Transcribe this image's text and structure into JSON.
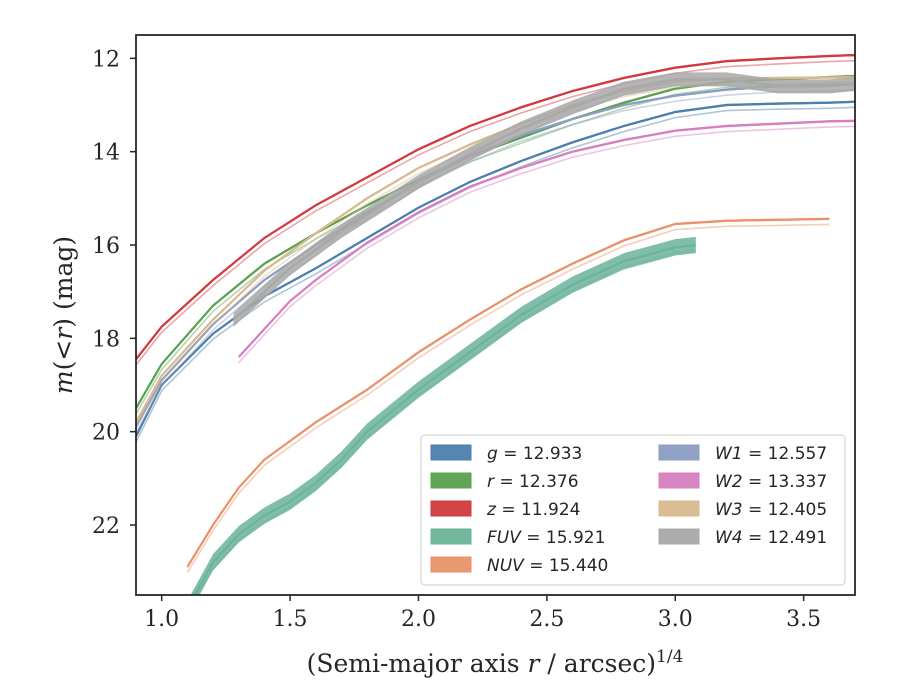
{
  "chart_data": {
    "type": "line",
    "title": "",
    "xlabel": "(Semi-major axis r / arcsec)^{1/4}",
    "ylabel": "m(<r) (mag)",
    "xlim": [
      0.9,
      3.7
    ],
    "ylim": [
      23.5,
      11.5
    ],
    "y_inverted": true,
    "grid": false,
    "legend_position": "lower-right",
    "x_ticks": [
      "1.0",
      "1.5",
      "2.0",
      "2.5",
      "3.0",
      "3.5"
    ],
    "y_ticks": [
      "12",
      "14",
      "16",
      "18",
      "20",
      "22"
    ],
    "series": [
      {
        "name": "g = 12.933",
        "band": "g",
        "color": "#4c7fad",
        "band_width": 0.05,
        "x": [
          0.9,
          1.0,
          1.2,
          1.4,
          1.6,
          1.8,
          2.0,
          2.2,
          2.4,
          2.6,
          2.8,
          3.0,
          3.2,
          3.4,
          3.6,
          3.7
        ],
        "y": [
          20.1,
          19.0,
          17.9,
          17.1,
          16.5,
          15.85,
          15.2,
          14.65,
          14.2,
          13.8,
          13.45,
          13.15,
          13.0,
          12.97,
          12.95,
          12.93
        ]
      },
      {
        "name": "r = 12.376",
        "band": "r",
        "color": "#59a14f",
        "band_width": 0.05,
        "x": [
          0.9,
          1.0,
          1.2,
          1.4,
          1.6,
          1.8,
          2.0,
          2.2,
          2.4,
          2.6,
          2.8,
          3.0,
          3.2,
          3.4,
          3.6,
          3.7
        ],
        "y": [
          19.5,
          18.55,
          17.3,
          16.4,
          15.75,
          15.15,
          14.6,
          14.1,
          13.7,
          13.3,
          12.95,
          12.65,
          12.5,
          12.45,
          12.4,
          12.38
        ]
      },
      {
        "name": "z = 11.924",
        "band": "z",
        "color": "#d03a3e",
        "band_width": 0.05,
        "x": [
          0.9,
          1.0,
          1.2,
          1.4,
          1.6,
          1.8,
          2.0,
          2.2,
          2.4,
          2.6,
          2.8,
          3.0,
          3.2,
          3.4,
          3.6,
          3.7
        ],
        "y": [
          18.45,
          17.75,
          16.75,
          15.85,
          15.15,
          14.55,
          13.95,
          13.45,
          13.05,
          12.7,
          12.42,
          12.2,
          12.06,
          12.0,
          11.95,
          11.93
        ]
      },
      {
        "name": "FUV = 15.921",
        "band": "FUV",
        "color": "#6bb39a",
        "band_width": 0.35,
        "x": [
          1.1,
          1.2,
          1.3,
          1.4,
          1.5,
          1.6,
          1.7,
          1.8,
          1.9,
          2.0,
          2.2,
          2.4,
          2.6,
          2.8,
          3.0,
          3.08
        ],
        "y": [
          23.8,
          22.8,
          22.2,
          21.8,
          21.5,
          21.1,
          20.6,
          20.0,
          19.55,
          19.1,
          18.3,
          17.5,
          16.85,
          16.35,
          16.05,
          16.0
        ]
      },
      {
        "name": "NUV = 15.440",
        "band": "NUV",
        "color": "#e8926a",
        "band_width": 0.05,
        "x": [
          1.1,
          1.2,
          1.3,
          1.4,
          1.5,
          1.6,
          1.8,
          2.0,
          2.2,
          2.4,
          2.6,
          2.8,
          3.0,
          3.2,
          3.4,
          3.6
        ],
        "y": [
          22.9,
          22.0,
          21.2,
          20.6,
          20.2,
          19.8,
          19.1,
          18.3,
          17.6,
          16.95,
          16.4,
          15.9,
          15.55,
          15.48,
          15.46,
          15.44
        ]
      },
      {
        "name": "W1 = 12.557",
        "band": "W1",
        "color": "#8b9dc3",
        "band_width": 0.05,
        "x": [
          0.9,
          1.0,
          1.2,
          1.4,
          1.6,
          1.8,
          2.0,
          2.2,
          2.4,
          2.6,
          2.8,
          3.0,
          3.2,
          3.4,
          3.6,
          3.7
        ],
        "y": [
          19.9,
          18.9,
          17.7,
          16.75,
          16.0,
          15.3,
          14.65,
          14.1,
          13.65,
          13.3,
          13.0,
          12.8,
          12.67,
          12.6,
          12.57,
          12.56
        ]
      },
      {
        "name": "W2 = 13.337",
        "band": "W2",
        "color": "#d67fbf",
        "band_width": 0.05,
        "x": [
          1.3,
          1.4,
          1.5,
          1.6,
          1.8,
          2.0,
          2.2,
          2.4,
          2.6,
          2.8,
          3.0,
          3.2,
          3.4,
          3.6,
          3.7
        ],
        "y": [
          18.4,
          17.8,
          17.2,
          16.75,
          15.95,
          15.3,
          14.75,
          14.35,
          14.0,
          13.75,
          13.55,
          13.45,
          13.4,
          13.35,
          13.34
        ]
      },
      {
        "name": "W3 = 12.405",
        "band": "W3",
        "color": "#d9b98e",
        "band_width": 0.05,
        "x": [
          0.9,
          1.0,
          1.2,
          1.4,
          1.6,
          1.8,
          2.0,
          2.2,
          2.4,
          2.6,
          2.8,
          3.0,
          3.2,
          3.4,
          3.6,
          3.7
        ],
        "y": [
          19.8,
          18.8,
          17.6,
          16.55,
          15.75,
          15.0,
          14.35,
          13.85,
          13.4,
          13.0,
          12.7,
          12.5,
          12.43,
          12.42,
          12.41,
          12.405
        ]
      },
      {
        "name": "W4 = 12.491",
        "band": "W4",
        "color": "#a8a8a8",
        "band_width": 0.3,
        "x": [
          1.28,
          1.4,
          1.5,
          1.6,
          1.7,
          1.8,
          2.0,
          2.2,
          2.4,
          2.6,
          2.8,
          3.0,
          3.2,
          3.4,
          3.6,
          3.7
        ],
        "y": [
          17.6,
          17.0,
          16.5,
          16.1,
          15.7,
          15.35,
          14.65,
          14.05,
          13.5,
          13.05,
          12.65,
          12.45,
          12.45,
          12.6,
          12.6,
          12.55
        ]
      }
    ]
  }
}
